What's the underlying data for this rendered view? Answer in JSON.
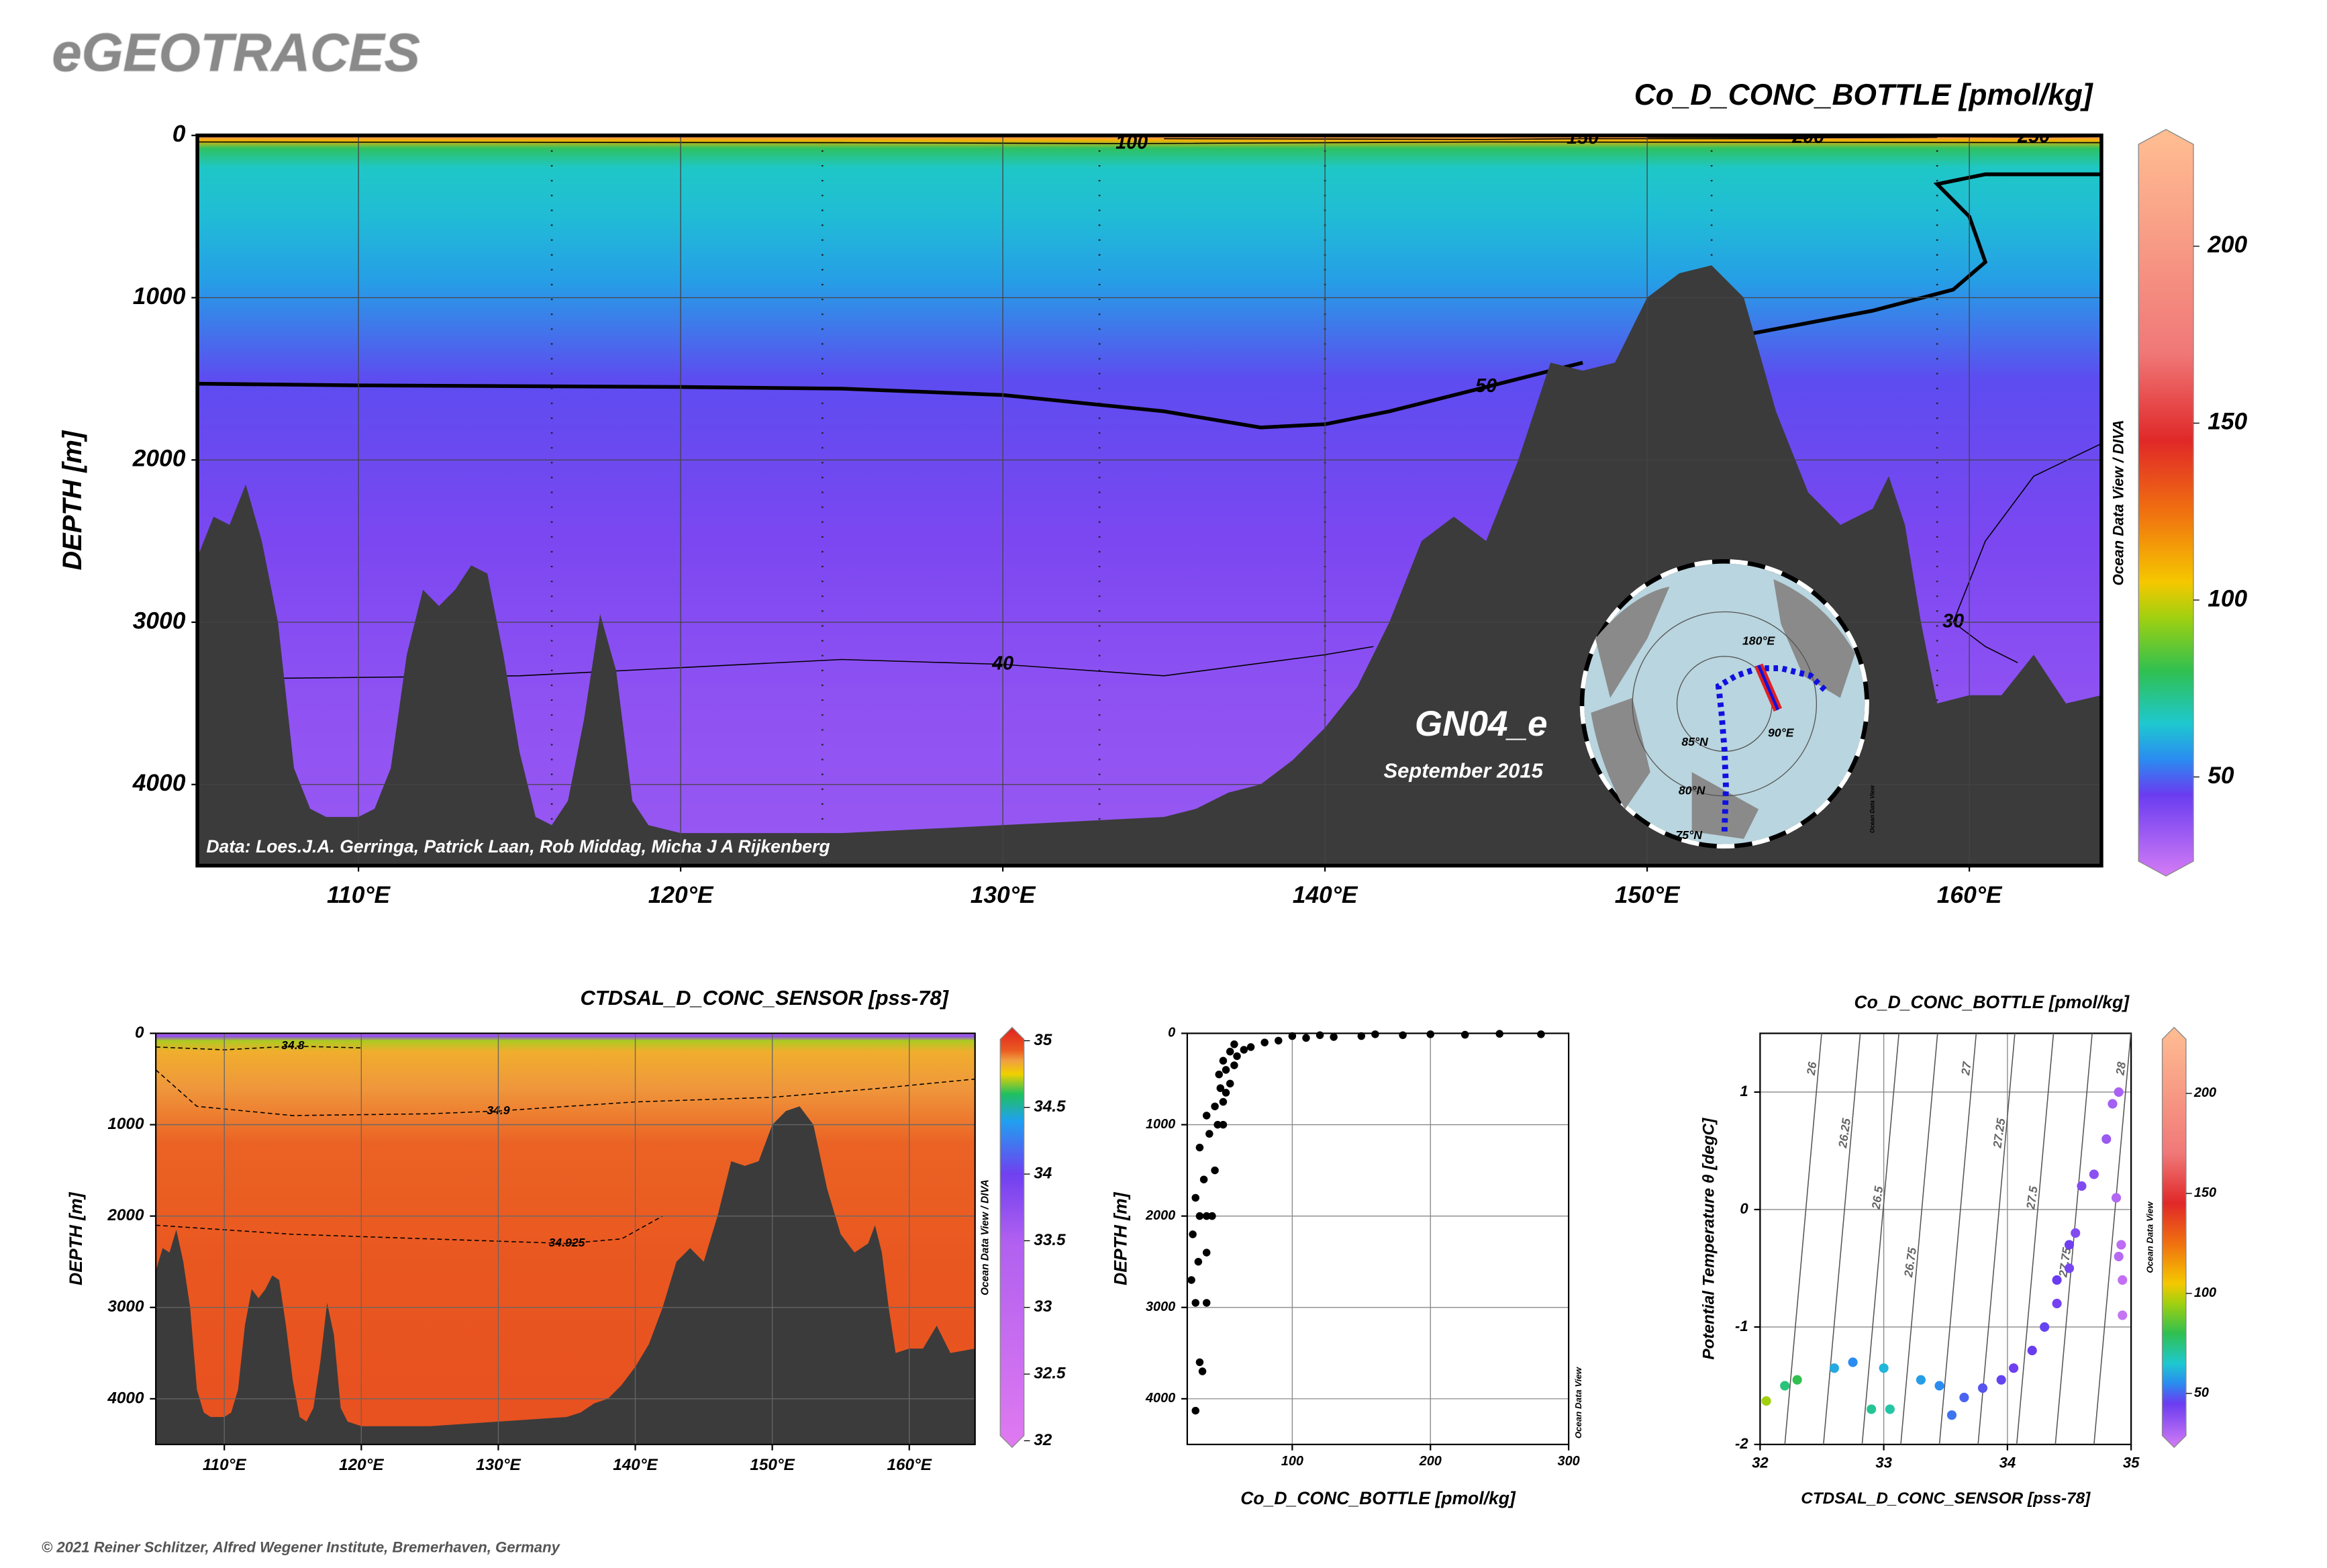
{
  "header": {
    "title": "eGEOTRACES",
    "footer": "© 2021 Reiner Schlitzer, Alfred Wegener Institute, Bremerhaven, Germany"
  },
  "inset": {
    "labels": [
      "85°N",
      "80°N",
      "75°N",
      "90°E",
      "180°E"
    ],
    "credit": "Ocean Data View"
  },
  "chart_data": [
    {
      "type": "section",
      "title": "Co_D_CONC_BOTTLE [pmol/kg]",
      "ylabel": "DEPTH [m]",
      "xlim": [
        105,
        164.1
      ],
      "ylim": [
        0,
        4500
      ],
      "xticks": [
        {
          "value": 110,
          "label": "110°E"
        },
        {
          "value": 120,
          "label": "120°E"
        },
        {
          "value": 130,
          "label": "130°E"
        },
        {
          "value": 140,
          "label": "140°E"
        },
        {
          "value": 150,
          "label": "150°E"
        },
        {
          "value": 160,
          "label": "160°E"
        }
      ],
      "yticks": [
        0,
        1000,
        2000,
        3000,
        4000
      ],
      "grid": true,
      "colorscale": [
        [
          22,
          "#d47cf5"
        ],
        [
          45,
          "#6a3cf0"
        ],
        [
          55,
          "#2a8cf0"
        ],
        [
          65,
          "#1ec8d0"
        ],
        [
          80,
          "#30c050"
        ],
        [
          95,
          "#a0d010"
        ],
        [
          105,
          "#f5c800"
        ],
        [
          125,
          "#f07010"
        ],
        [
          145,
          "#e02828"
        ],
        [
          170,
          "#f07878"
        ],
        [
          233,
          "#ffbe92"
        ]
      ],
      "colorbar": {
        "clim": [
          22,
          233
        ],
        "ticks": [
          50,
          100,
          150,
          200
        ],
        "label": "Ocean Data View / DIVA"
      },
      "field_profile": {
        "depth": [
          0,
          30,
          80,
          200,
          500,
          900,
          1500,
          2500,
          3500,
          4500
        ],
        "values": [
          180,
          110,
          78,
          66,
          63,
          58,
          47,
          41,
          37,
          35
        ]
      },
      "bathymetry": {
        "x": [
          105,
          105.5,
          106,
          106.5,
          107,
          107.5,
          108,
          108.5,
          109,
          110,
          110.5,
          111,
          111.5,
          112,
          112.5,
          113,
          113.5,
          114,
          114.5,
          115,
          115.5,
          116,
          116.5,
          117,
          117.5,
          118,
          118.5,
          119,
          120,
          125,
          130,
          135,
          136,
          137,
          138,
          139,
          140,
          141,
          142,
          143,
          144,
          145,
          146,
          147,
          148,
          149,
          150,
          151,
          152,
          153,
          154,
          155,
          156,
          157,
          157.5,
          158,
          158.5,
          159,
          160,
          161,
          162,
          163,
          164.1
        ],
        "depth": [
          2600,
          2350,
          2400,
          2150,
          2500,
          3000,
          3900,
          4150,
          4200,
          4200,
          4150,
          3900,
          3200,
          2800,
          2900,
          2800,
          2650,
          2700,
          3200,
          3800,
          4200,
          4250,
          4100,
          3600,
          2950,
          3300,
          4100,
          4250,
          4300,
          4300,
          4250,
          4200,
          4150,
          4050,
          4000,
          3850,
          3650,
          3400,
          3000,
          2500,
          2350,
          2500,
          2000,
          1400,
          1450,
          1400,
          1000,
          850,
          800,
          1000,
          1700,
          2200,
          2400,
          2300,
          2100,
          2400,
          3000,
          3500,
          3450,
          3450,
          3200,
          3500,
          3450
        ]
      },
      "stations": [
        116,
        124.4,
        133,
        140,
        152,
        159
      ],
      "contours": [
        {
          "level": 50,
          "x": [
            105,
            110,
            120,
            125,
            130,
            135,
            138,
            140,
            142,
            145,
            148,
            null,
            153,
            157,
            159.5,
            160.5,
            160,
            159,
            160.5,
            164.1
          ],
          "depth": [
            1530,
            1540,
            1550,
            1560,
            1600,
            1700,
            1800,
            1780,
            1700,
            1550,
            1400,
            null,
            1230,
            1080,
            950,
            780,
            500,
            300,
            240,
            240
          ]
        },
        {
          "level": 40,
          "x": [
            105,
            115,
            125,
            130,
            135,
            140,
            141.5
          ],
          "depth": [
            3350,
            3330,
            3230,
            3260,
            3330,
            3200,
            3150
          ]
        },
        {
          "level": 30,
          "x": [
            164.1,
            162,
            160.5,
            159.5,
            160.5,
            161.5
          ],
          "depth": [
            1900,
            2100,
            2500,
            3000,
            3150,
            3250
          ]
        },
        {
          "level": 100,
          "x": [
            105,
            125,
            134,
            145,
            164.1
          ],
          "depth": [
            40,
            45,
            50,
            40,
            45
          ]
        },
        {
          "level": 150,
          "x": [
            135,
            145,
            148,
            155
          ],
          "depth": [
            20,
            25,
            20,
            20
          ]
        },
        {
          "level": 200,
          "x": [
            150,
            155,
            159
          ],
          "depth": [
            12,
            15,
            12
          ]
        },
        {
          "level": 250,
          "x": [
            159,
            162,
            164.1
          ],
          "depth": [
            8,
            10,
            8
          ]
        }
      ],
      "annotations": {
        "cruise": "GN04_e",
        "date": "September 2015",
        "credit": "Data: Loes.J.A. Gerringa, Patrick Laan, Rob Middag, Micha J A Rijkenberg"
      }
    },
    {
      "type": "section",
      "title": "CTDSAL_D_CONC_SENSOR [pss-78]",
      "ylabel": "DEPTH [m]",
      "xlim": [
        105,
        164.8
      ],
      "ylim": [
        0,
        4500
      ],
      "xticks": [
        {
          "value": 110,
          "label": "110°E"
        },
        {
          "value": 120,
          "label": "120°E"
        },
        {
          "value": 130,
          "label": "130°E"
        },
        {
          "value": 140,
          "label": "140°E"
        },
        {
          "value": 150,
          "label": "150°E"
        },
        {
          "value": 160,
          "label": "160°E"
        }
      ],
      "yticks": [
        0,
        1000,
        2000,
        3000,
        4000
      ],
      "grid": true,
      "colorscale": [
        [
          31.95,
          "#e07af0"
        ],
        [
          33.5,
          "#b060f0"
        ],
        [
          34,
          "#7040f0"
        ],
        [
          34.4,
          "#20a0f0"
        ],
        [
          34.6,
          "#20c060"
        ],
        [
          34.75,
          "#f0d000"
        ],
        [
          34.85,
          "#f0a040"
        ],
        [
          34.93,
          "#ea5a20"
        ],
        [
          35.1,
          "#e02020"
        ]
      ],
      "colorbar": {
        "clim": [
          31.95,
          35.1
        ],
        "ticks": [
          32,
          32.5,
          33,
          33.5,
          34,
          34.5,
          35
        ],
        "label": "Ocean Data View / DIVA"
      },
      "field_profile": {
        "depth": [
          0,
          30,
          80,
          200,
          600,
          1200,
          2500,
          4500
        ],
        "values": [
          32.2,
          33.8,
          34.7,
          34.82,
          34.86,
          34.92,
          34.94,
          34.96
        ]
      },
      "bathymetry": {
        "x": [
          105,
          105.5,
          106,
          106.5,
          107,
          107.5,
          108,
          108.5,
          109,
          110,
          110.5,
          111,
          111.5,
          112,
          112.5,
          113,
          113.5,
          114,
          114.5,
          115,
          115.5,
          116,
          116.5,
          117,
          117.5,
          118,
          118.5,
          119,
          120,
          125,
          130,
          135,
          136,
          137,
          138,
          139,
          140,
          141,
          142,
          143,
          144,
          145,
          146,
          147,
          148,
          149,
          150,
          151,
          152,
          153,
          154,
          155,
          156,
          157,
          157.5,
          158,
          158.5,
          159,
          160,
          161,
          162,
          163,
          164.8
        ],
        "depth": [
          2600,
          2350,
          2400,
          2150,
          2500,
          3000,
          3900,
          4150,
          4200,
          4200,
          4150,
          3900,
          3200,
          2800,
          2900,
          2800,
          2650,
          2700,
          3200,
          3800,
          4200,
          4250,
          4100,
          3600,
          2950,
          3300,
          4100,
          4250,
          4300,
          4300,
          4250,
          4200,
          4150,
          4050,
          4000,
          3850,
          3650,
          3400,
          3000,
          2500,
          2350,
          2500,
          2000,
          1400,
          1450,
          1400,
          1000,
          850,
          800,
          1000,
          1700,
          2200,
          2400,
          2300,
          2100,
          2400,
          3000,
          3500,
          3450,
          3450,
          3200,
          3500,
          3450
        ]
      },
      "contours": [
        {
          "level": 34.9,
          "x": [
            105,
            108,
            115,
            125,
            130,
            140,
            150,
            158,
            164.8
          ],
          "depth": [
            400,
            800,
            900,
            880,
            850,
            750,
            700,
            600,
            500
          ]
        },
        {
          "level": 34.925,
          "x": [
            105,
            115,
            125,
            135,
            139,
            142
          ],
          "depth": [
            2100,
            2200,
            2250,
            2300,
            2250,
            2000
          ]
        },
        {
          "level": 34.8,
          "x": [
            105,
            110,
            115,
            120
          ],
          "depth": [
            150,
            180,
            140,
            160
          ]
        }
      ]
    },
    {
      "type": "scatter",
      "xlabel": "Co_D_CONC_BOTTLE [pmol/kg]",
      "ylabel": "DEPTH [m]",
      "yreverse": true,
      "color": "#000000",
      "xlim": [
        24,
        300
      ],
      "ylim": [
        0,
        4500
      ],
      "xticks": [
        100,
        200,
        300
      ],
      "yticks": [
        0,
        1000,
        2000,
        3000,
        4000
      ],
      "grid": true,
      "credit": "Ocean Data View",
      "x": [
        30,
        35,
        33,
        30,
        38,
        27,
        32,
        38,
        28,
        33,
        38,
        42,
        30,
        36,
        44,
        33,
        40,
        46,
        50,
        38,
        44,
        50,
        52,
        48,
        55,
        47,
        52,
        58,
        50,
        60,
        55,
        65,
        70,
        58,
        80,
        90,
        110,
        130,
        150,
        180,
        200,
        225,
        250,
        280,
        120,
        100,
        160
      ],
      "y": [
        4130,
        3700,
        3600,
        2950,
        2950,
        2700,
        2500,
        2400,
        2200,
        2000,
        2000,
        2000,
        1800,
        1600,
        1500,
        1250,
        1100,
        1000,
        1000,
        900,
        800,
        750,
        650,
        600,
        550,
        450,
        400,
        350,
        300,
        250,
        200,
        180,
        150,
        120,
        100,
        80,
        50,
        40,
        30,
        20,
        10,
        15,
        5,
        10,
        20,
        30,
        10
      ]
    },
    {
      "type": "scatter",
      "title": "Co_D_CONC_BOTTLE [pmol/kg]",
      "xlabel": "CTDSAL_D_CONC_SENSOR [pss-78]",
      "ylabel": "Potential Temperature θ [degC]",
      "xlim": [
        32,
        35
      ],
      "ylim": [
        -2,
        1.5
      ],
      "xticks": [
        32,
        33,
        34,
        35
      ],
      "yticks": [
        -2,
        -1,
        0,
        1
      ],
      "grid": true,
      "colorscale": [
        [
          23,
          "#d47cf5"
        ],
        [
          45,
          "#6a3cf0"
        ],
        [
          55,
          "#2a8cf0"
        ],
        [
          65,
          "#1ec8d0"
        ],
        [
          80,
          "#30c050"
        ],
        [
          95,
          "#a0d010"
        ],
        [
          105,
          "#f5c800"
        ],
        [
          125,
          "#f07010"
        ],
        [
          145,
          "#e02828"
        ],
        [
          170,
          "#f07878"
        ],
        [
          233,
          "#ffbe92"
        ]
      ],
      "colorbar": {
        "clim": [
          23,
          233
        ],
        "ticks": [
          50,
          100,
          150,
          200
        ],
        "label": "Ocean Data View"
      },
      "isopycnals": [
        26,
        26.25,
        26.5,
        26.75,
        27,
        27.25,
        27.5,
        27.75,
        28
      ],
      "x": [
        32.05,
        32.2,
        32.3,
        32.6,
        32.75,
        33.0,
        33.05,
        32.9,
        33.3,
        33.45,
        33.55,
        33.65,
        33.8,
        33.95,
        34.05,
        34.2,
        34.3,
        34.4,
        34.5,
        34.55,
        34.6,
        34.7,
        34.8,
        34.85,
        34.9,
        34.88,
        34.92,
        34.93,
        34.93,
        34.9,
        34.4,
        34.5
      ],
      "y": [
        -1.63,
        -1.5,
        -1.45,
        -1.35,
        -1.3,
        -1.35,
        -1.7,
        -1.7,
        -1.45,
        -1.5,
        -1.75,
        -1.6,
        -1.52,
        -1.45,
        -1.35,
        -1.2,
        -1.0,
        -0.8,
        -0.5,
        -0.2,
        0.2,
        0.3,
        0.6,
        0.9,
        1.0,
        0.1,
        -0.3,
        -0.6,
        -0.9,
        -0.4,
        -0.6,
        -0.3
      ],
      "values": [
        95,
        75,
        80,
        60,
        55,
        62,
        70,
        72,
        58,
        55,
        52,
        50,
        48,
        46,
        44,
        45,
        46,
        43,
        42,
        40,
        40,
        38,
        35,
        33,
        32,
        30,
        28,
        27,
        26,
        29,
        45,
        44
      ]
    }
  ]
}
